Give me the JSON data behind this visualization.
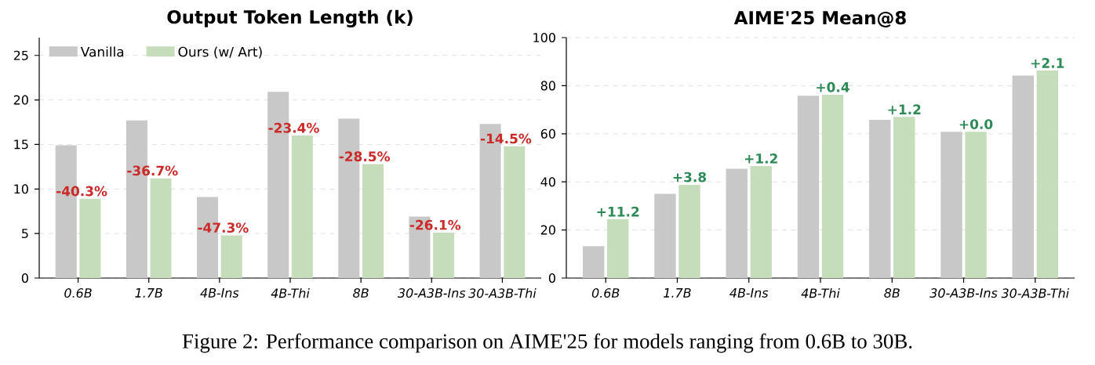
{
  "chart_data": [
    {
      "type": "bar",
      "title": "Output Token Length (k)",
      "categories": [
        "0.6B",
        "1.7B",
        "4B-Ins",
        "4B-Thi",
        "8B",
        "30-A3B-Ins",
        "30-A3B-Thi"
      ],
      "series": [
        {
          "name": "Vanilla",
          "color": "#c8c8c8",
          "values": [
            14.9,
            17.7,
            9.1,
            20.9,
            17.9,
            6.9,
            17.3
          ]
        },
        {
          "name": "Ours (w/ Art)",
          "color": "#c6ddbb",
          "values": [
            8.9,
            11.2,
            4.8,
            16.0,
            12.8,
            5.1,
            14.8
          ]
        }
      ],
      "ylim": [
        0,
        27
      ],
      "yticks": [
        0,
        5,
        10,
        15,
        20,
        25
      ],
      "grid": "y",
      "legend": "top left",
      "annotations": [
        {
          "text": "-40.3%",
          "x": "0.6B",
          "y": 8.9
        },
        {
          "text": "-36.7%",
          "x": "1.7B",
          "y": 11.2
        },
        {
          "text": "-47.3%",
          "x": "4B-Ins",
          "y": 4.8
        },
        {
          "text": "-23.4%",
          "x": "4B-Thi",
          "y": 16.0
        },
        {
          "text": "-28.5%",
          "x": "8B",
          "y": 12.8
        },
        {
          "text": "-26.1%",
          "x": "30-A3B-Ins",
          "y": 5.1
        },
        {
          "text": "-14.5%",
          "x": "30-A3B-Thi",
          "y": 14.8
        },
        "Figure 2: Performance comparison on AIME'25 for models ranging from 0.6B to 30B."
      ]
    },
    {
      "type": "bar",
      "title": "AIME'25 Mean@8",
      "categories": [
        "0.6B",
        "1.7B",
        "4B-Ins",
        "4B-Thi",
        "8B",
        "30-A3B-Ins",
        "30-A3B-Thi"
      ],
      "series": [
        {
          "color": "#c8c8c8",
          "values": [
            13.3,
            35.0,
            45.4,
            75.8,
            65.8,
            60.8,
            84.2
          ]
        },
        {
          "color": "#c6ddbb",
          "values": [
            24.5,
            38.8,
            46.6,
            76.2,
            67.0,
            60.8,
            86.3
          ]
        }
      ],
      "ylim": [
        0,
        100
      ],
      "yticks": [
        0,
        20,
        40,
        60,
        80,
        100
      ],
      "grid": "y",
      "annotations": [
        {
          "text": "+11.2",
          "x": "0.6B",
          "y": 24.5
        },
        {
          "text": "+3.8",
          "x": "1.7B",
          "y": 38.8
        },
        {
          "text": "+1.2",
          "x": "4B-Ins",
          "y": 46.6
        },
        {
          "text": "+0.4",
          "x": "4B-Thi",
          "y": 76.2
        },
        {
          "text": "+1.2",
          "x": "8B",
          "y": 67.0
        },
        {
          "text": "+0.0",
          "x": "30-A3B-Ins",
          "y": 60.8
        },
        {
          "text": "+2.1",
          "x": "30-A3B-Thi",
          "y": 86.3
        }
      ]
    }
  ]
}
